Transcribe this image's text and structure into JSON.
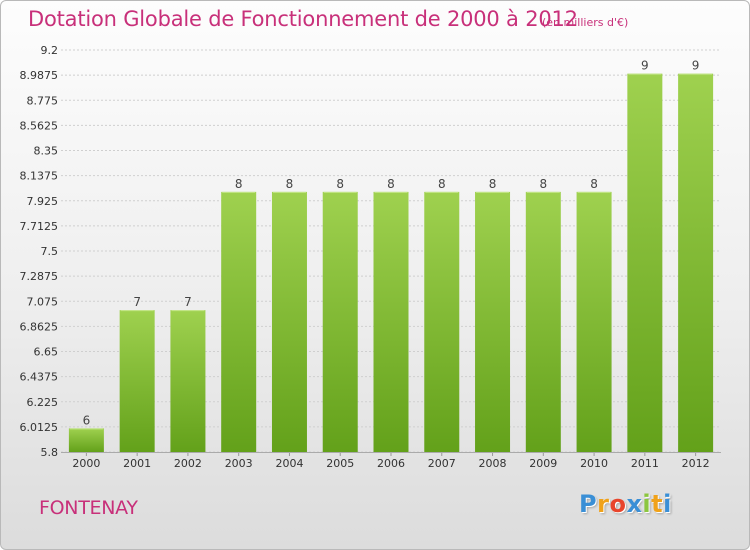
{
  "header": {
    "title": "Dotation Globale de Fonctionnement de 2000 à 2012",
    "unit": "(en milliers d'€)"
  },
  "footer": {
    "commune": "FONTENAY",
    "logo_letters": [
      "P",
      "r",
      "o",
      "x",
      "i",
      "t",
      "i"
    ],
    "logo_colors": [
      "#3a8fd6",
      "#f0a21a",
      "#e8452c",
      "#3a8fd6",
      "#8cc63f",
      "#f0a21a",
      "#3a8fd6"
    ]
  },
  "colors": {
    "title": "#c8307a",
    "bar_light": "#9fd14f",
    "bar_dark": "#63a11a",
    "grid": "#cfcfcf",
    "axis_text": "#333333"
  },
  "chart_data": {
    "type": "bar",
    "categories": [
      "2000",
      "2001",
      "2002",
      "2003",
      "2004",
      "2005",
      "2006",
      "2007",
      "2008",
      "2009",
      "2010",
      "2011",
      "2012"
    ],
    "values": [
      6,
      7,
      7,
      8,
      8,
      8,
      8,
      8,
      8,
      8,
      8,
      9,
      9
    ],
    "data_labels": [
      "6",
      "7",
      "7",
      "8",
      "8",
      "8",
      "8",
      "8",
      "8",
      "8",
      "8",
      "9",
      "9"
    ],
    "ylim": [
      5.8,
      9.2
    ],
    "yticks": [
      5.8,
      6.0125,
      6.225,
      6.4375,
      6.65,
      6.8625,
      7.075,
      7.2875,
      7.5,
      7.7125,
      7.925,
      8.1375,
      8.35,
      8.5625,
      8.775,
      8.9875,
      9.2
    ],
    "ytick_labels": [
      "5.8",
      "6.0125",
      "6.225",
      "6.4375",
      "6.65",
      "6.8625",
      "7.075",
      "7.2875",
      "7.5",
      "7.7125",
      "7.925",
      "8.1375",
      "8.35",
      "8.5625",
      "8.775",
      "8.9875",
      "9.2"
    ],
    "grid": true,
    "legend": "none"
  }
}
